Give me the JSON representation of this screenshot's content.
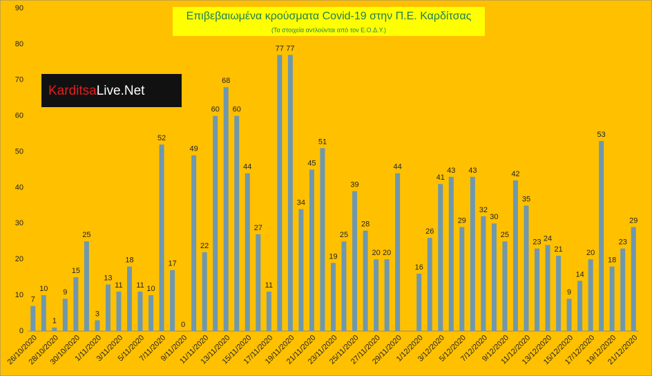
{
  "chart_data": {
    "type": "bar",
    "title": "Επιβεβαιωμένα κρούσματα Covid-19 στην Π.Ε. Καρδίτσας",
    "subtitle": "(Τα στοιχεία αντλούνται από τον Ε.Ο.Δ.Υ.)",
    "logo": {
      "part1": "Karditsa",
      "part2": "Live",
      "part3": ".Net"
    },
    "categories": [
      "26/10/2020",
      null,
      "28/10/2020",
      null,
      "30/10/2020",
      null,
      "1/11/2020",
      null,
      "3/11/2020",
      null,
      "5/11/2020",
      null,
      "7/11/2020",
      null,
      "9/11/2020",
      null,
      "11/11/2020",
      null,
      "13/11/2020",
      null,
      "15/11/2020",
      null,
      "17/11/2020",
      null,
      "19/11/2020",
      null,
      "21/11/2020",
      null,
      "23/11/2020",
      null,
      "25/11/2020",
      null,
      "27/11/2020",
      null,
      "29/11/2020",
      null,
      "1/12/2020",
      null,
      "3/12/2020",
      null,
      "5/12/2020",
      null,
      "7/12/2020",
      null,
      "9/12/2020",
      null,
      "11/12/2020",
      null,
      "13/12/2020",
      null,
      "15/12/2020",
      null,
      "17/12/2020",
      null,
      "19/12/2020",
      null,
      "21/12/2020"
    ],
    "values": [
      7,
      10,
      1,
      9,
      15,
      25,
      3,
      13,
      11,
      18,
      11,
      10,
      52,
      17,
      0,
      49,
      22,
      60,
      68,
      60,
      44,
      27,
      11,
      77,
      77,
      34,
      45,
      51,
      19,
      25,
      39,
      28,
      20,
      20,
      44,
      null,
      16,
      26,
      41,
      43,
      29,
      43,
      32,
      30,
      25,
      42,
      35,
      23,
      24,
      21,
      9,
      14,
      20,
      53,
      18,
      23,
      29
    ],
    "color": "#6f98ad",
    "ylim": [
      0,
      90
    ],
    "yticks": [
      0,
      10,
      20,
      30,
      40,
      50,
      60,
      70,
      80,
      90
    ],
    "grid": false
  }
}
